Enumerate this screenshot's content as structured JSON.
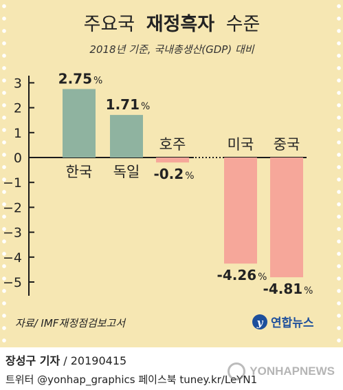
{
  "chart_data": {
    "type": "bar",
    "title_prefix": "주요국",
    "title_bold": "재정흑자",
    "title_suffix": "수준",
    "subtitle": "2018년 기준, 국내총생산(GDP) 대비",
    "categories": [
      "한국",
      "독일",
      "호주",
      "미국",
      "중국"
    ],
    "values": [
      2.75,
      1.71,
      -0.2,
      -4.26,
      -4.81
    ],
    "value_labels": [
      "2.75",
      "1.71",
      "-0.2",
      "-4.26",
      "-4.81"
    ],
    "unit": "%",
    "ylim": [
      -5.5,
      3.5
    ],
    "y_ticks": [
      3,
      2,
      1,
      0,
      -1,
      -2,
      -3,
      -4,
      -5
    ],
    "y_tick_labels": [
      "3",
      "2",
      "1",
      "0",
      "−1",
      "−2",
      "−3",
      "−4",
      "−5"
    ],
    "grid": false,
    "colors": {
      "positive": "#8fb3a0",
      "negative": "#f6a79a",
      "background": "#f6e7b3",
      "text": "#222222",
      "axis": "#1a1a1a"
    },
    "source": "자료/ IMF재정점검보고서"
  },
  "brand": {
    "name": "연합뉴스",
    "logo_icon": "yonhap-logo-icon"
  },
  "footer": {
    "reporter": "장성구 기자",
    "date": " / 20190415",
    "social": "트위터 @yonhap_graphics  페이스북 tuney.kr/LeYN1",
    "watermark": "YONHAPNEWS"
  }
}
